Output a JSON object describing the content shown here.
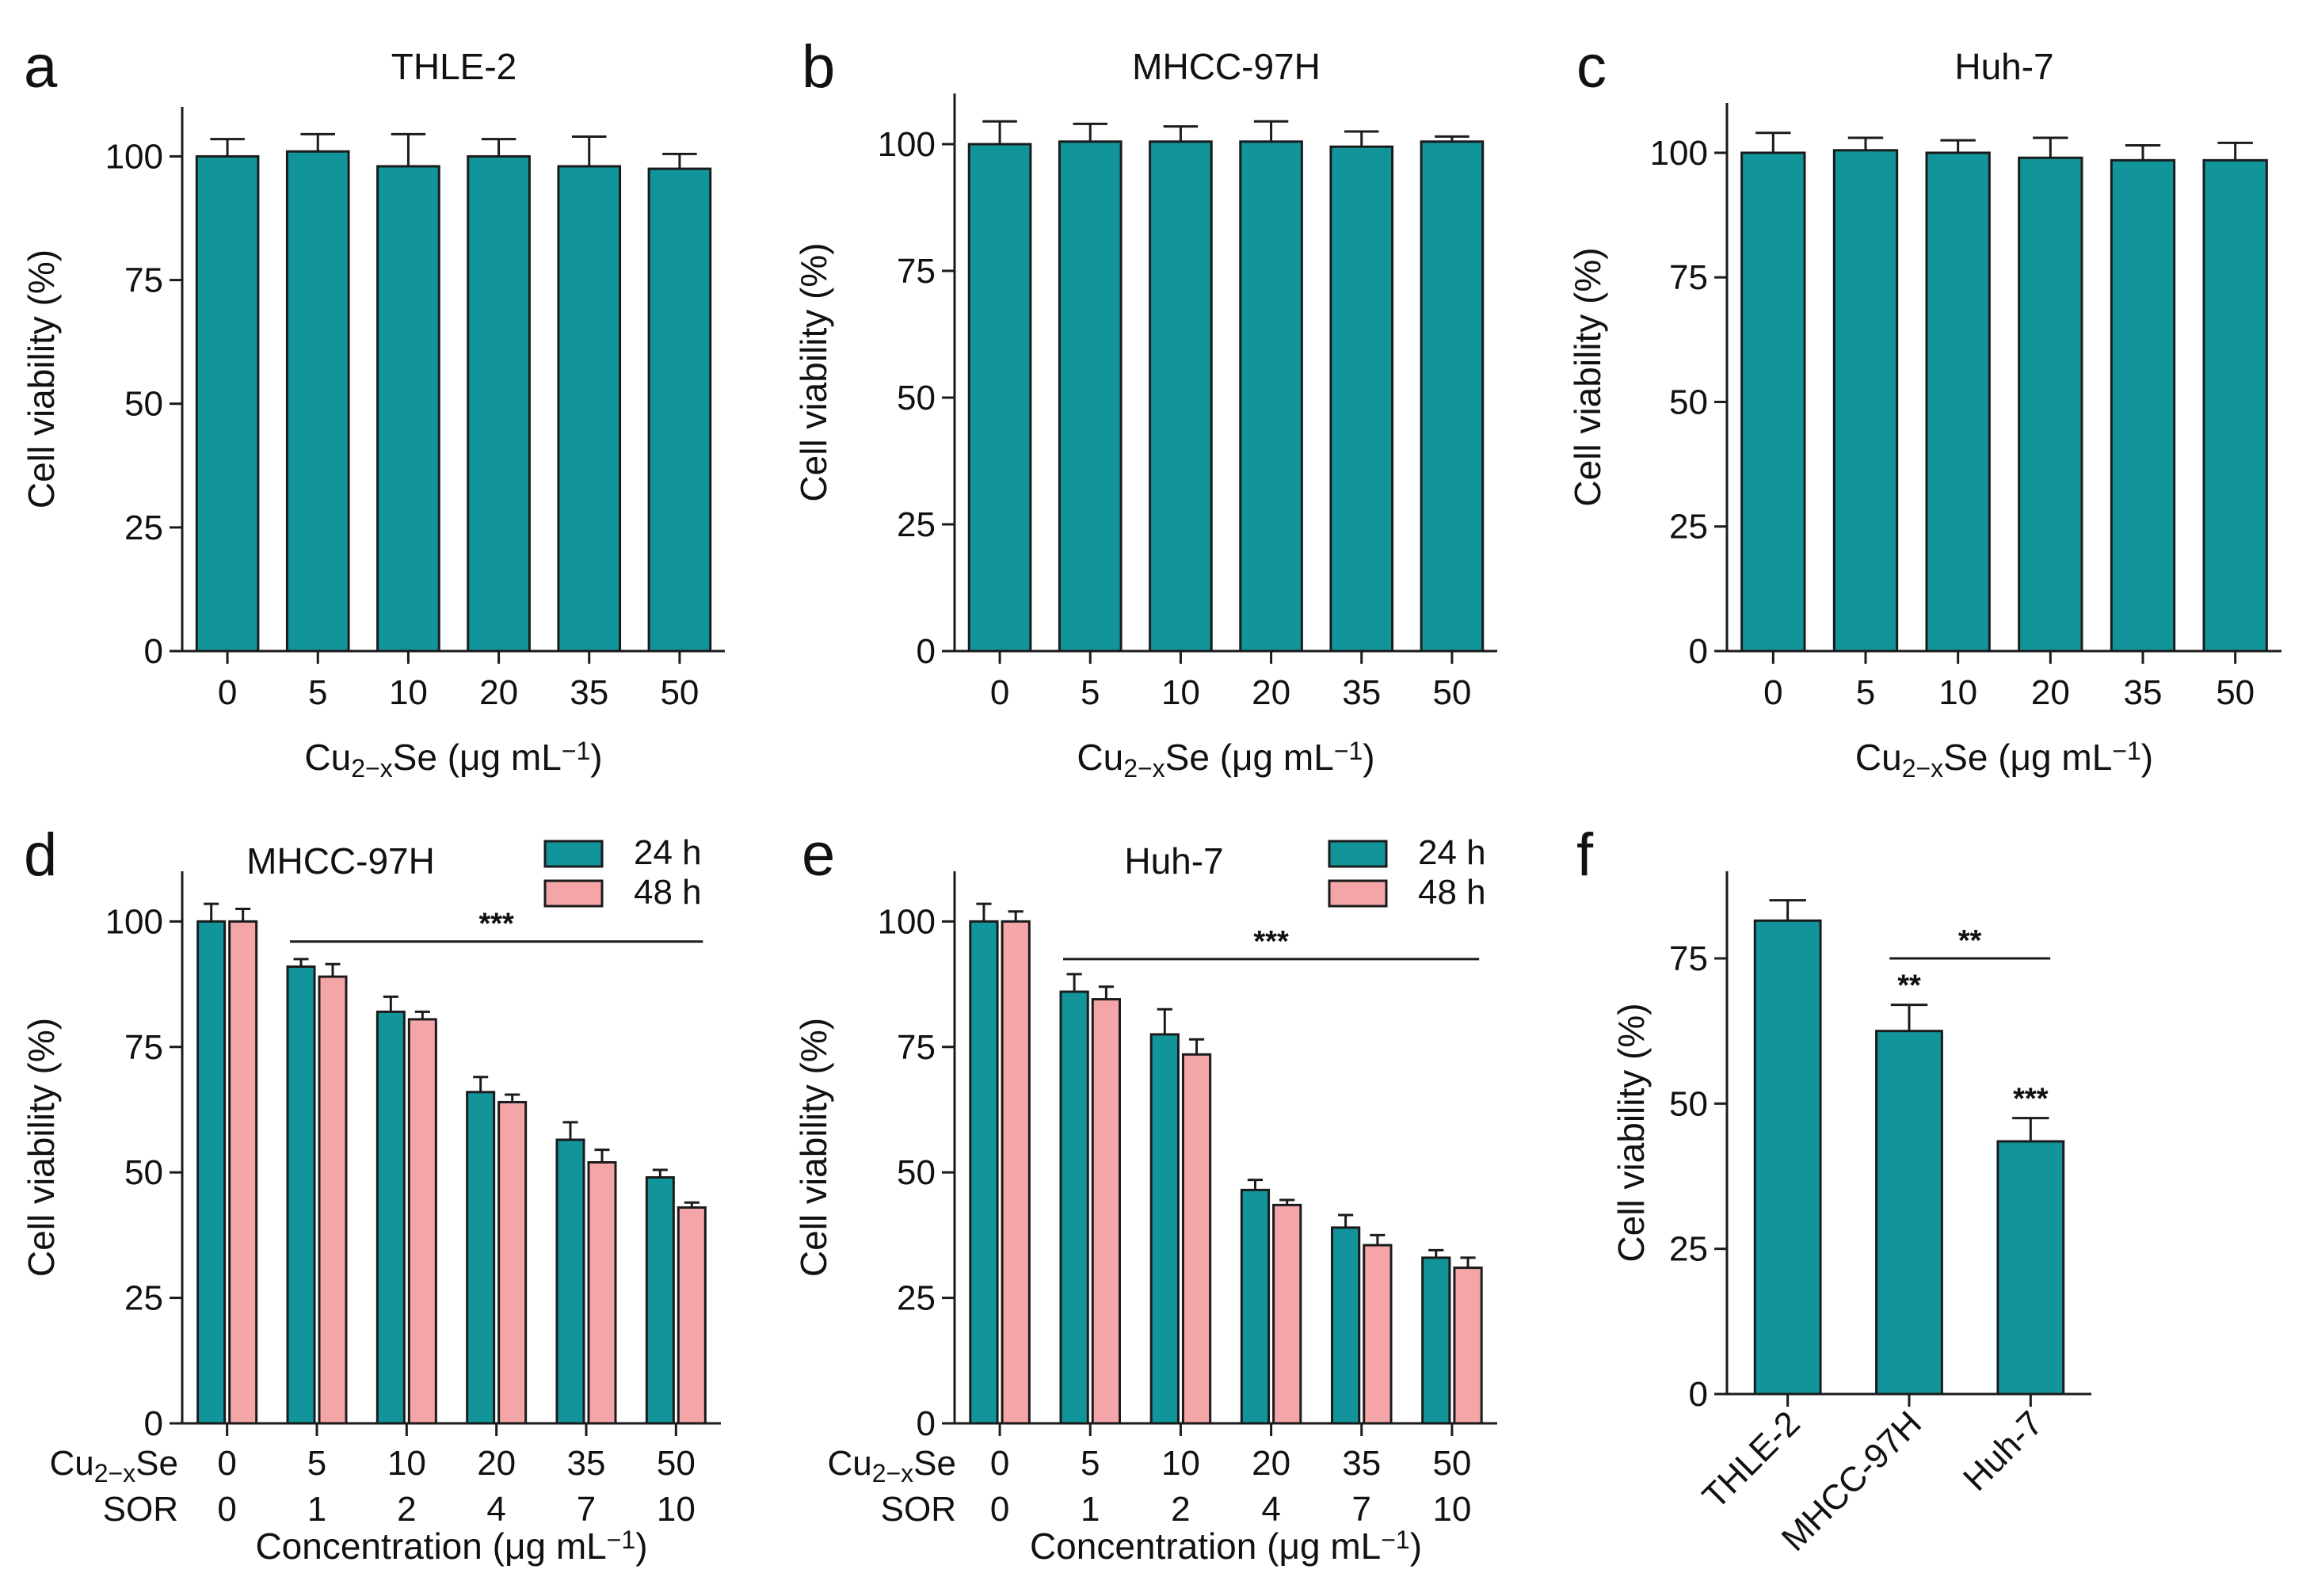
{
  "figure": {
    "colors": {
      "series_24h": "#11959b",
      "series_48h": "#f4a5a8",
      "bar_outline": "#1b1b1b",
      "axis": "#1b1b1b"
    },
    "panels": [
      {
        "letter": "a",
        "chart_data": {
          "type": "bar",
          "title": "THLE-2",
          "categories": [
            "0",
            "5",
            "10",
            "20",
            "35",
            "50"
          ],
          "series": [
            {
              "name": "viability",
              "values": [
                100,
                101,
                98,
                100,
                98,
                97.5
              ],
              "errors": [
                3.5,
                3.5,
                6.5,
                3.5,
                6,
                3
              ]
            }
          ],
          "xlabel_parts": [
            "Cu",
            "2−x",
            "Se (μg mL",
            "−1",
            ")"
          ],
          "ylabel": "Cell viability (%)",
          "yticks": [
            0,
            25,
            50,
            75,
            100
          ],
          "ylim": [
            0,
            110
          ]
        }
      },
      {
        "letter": "b",
        "chart_data": {
          "type": "bar",
          "title": "MHCC-97H",
          "categories": [
            "0",
            "5",
            "10",
            "20",
            "35",
            "50"
          ],
          "series": [
            {
              "name": "viability",
              "values": [
                100,
                100.5,
                100.5,
                100.5,
                99.5,
                100.5
              ],
              "errors": [
                4.5,
                3.5,
                3,
                4,
                3,
                1
              ]
            }
          ],
          "xlabel_parts": [
            "Cu",
            "2−x",
            "Se (μg mL",
            "−1",
            ")"
          ],
          "ylabel": "Cell viability (%)",
          "yticks": [
            0,
            25,
            50,
            75,
            100
          ],
          "ylim": [
            0,
            110
          ]
        }
      },
      {
        "letter": "c",
        "chart_data": {
          "type": "bar",
          "title": "Huh-7",
          "categories": [
            "0",
            "5",
            "10",
            "20",
            "35",
            "50"
          ],
          "series": [
            {
              "name": "viability",
              "values": [
                100,
                100.5,
                100,
                99,
                98.5,
                98.5
              ],
              "errors": [
                4,
                2.5,
                2.5,
                4,
                3,
                3.5
              ]
            }
          ],
          "xlabel_parts": [
            "Cu",
            "2−x",
            "Se (μg mL",
            "−1",
            ")"
          ],
          "ylabel": "Cell viability (%)",
          "yticks": [
            0,
            25,
            50,
            75,
            100
          ],
          "ylim": [
            0,
            110
          ]
        }
      },
      {
        "letter": "d",
        "chart_data": {
          "type": "bar",
          "title": "MHCC-97H",
          "categories": [
            "0",
            "5",
            "10",
            "20",
            "35",
            "50"
          ],
          "row_labels": [
            {
              "label_parts": [
                "Cu",
                "2−x",
                "Se"
              ],
              "values": [
                "0",
                "5",
                "10",
                "20",
                "35",
                "50"
              ]
            },
            {
              "label_parts": [
                "SOR"
              ],
              "values": [
                "0",
                "1",
                "2",
                "4",
                "7",
                "10"
              ]
            }
          ],
          "series": [
            {
              "name": "24 h",
              "values": [
                100,
                91,
                82,
                66,
                56.5,
                49
              ],
              "errors": [
                3.5,
                1.5,
                3,
                3,
                3.5,
                1.5
              ]
            },
            {
              "name": "48 h",
              "values": [
                100,
                89,
                80.5,
                64,
                52,
                43
              ],
              "errors": [
                2.5,
                2.5,
                1.5,
                1.5,
                2.5,
                1
              ]
            }
          ],
          "legend": [
            "24 h",
            "48 h"
          ],
          "significance": [
            {
              "label": "***",
              "from": 1,
              "to": 5,
              "y": 96
            }
          ],
          "xlabel_parts": [
            "Concentration (μg mL",
            "−1",
            ")"
          ],
          "ylabel": "Cell viability (%)",
          "yticks": [
            0,
            25,
            50,
            75,
            100
          ],
          "ylim": [
            0,
            110
          ]
        }
      },
      {
        "letter": "e",
        "chart_data": {
          "type": "bar",
          "title": "Huh-7",
          "categories": [
            "0",
            "5",
            "10",
            "20",
            "35",
            "50"
          ],
          "row_labels": [
            {
              "label_parts": [
                "Cu",
                "2−x",
                "Se"
              ],
              "values": [
                "0",
                "5",
                "10",
                "20",
                "35",
                "50"
              ]
            },
            {
              "label_parts": [
                "SOR"
              ],
              "values": [
                "0",
                "1",
                "2",
                "4",
                "7",
                "10"
              ]
            }
          ],
          "series": [
            {
              "name": "24 h",
              "values": [
                100,
                86,
                77.5,
                46.5,
                39,
                33
              ],
              "errors": [
                3.5,
                3.5,
                5,
                2,
                2.5,
                1.5
              ]
            },
            {
              "name": "48 h",
              "values": [
                100,
                84.5,
                73.5,
                43.5,
                35.5,
                31
              ],
              "errors": [
                2,
                2.5,
                3,
                1,
                2,
                2
              ]
            }
          ],
          "legend": [
            "24 h",
            "48 h"
          ],
          "significance": [
            {
              "label": "***",
              "from": 1,
              "to": 5,
              "y": 92.5
            }
          ],
          "xlabel_parts": [
            "Concentration (μg mL",
            "−1",
            ")"
          ],
          "ylabel": "Cell viability (%)",
          "yticks": [
            0,
            25,
            50,
            75,
            100
          ],
          "ylim": [
            0,
            110
          ]
        }
      },
      {
        "letter": "f",
        "chart_data": {
          "type": "bar",
          "title": "",
          "categories": [
            "THLE-2",
            "MHCC-97H",
            "Huh-7"
          ],
          "series": [
            {
              "name": "viability",
              "values": [
                81.5,
                62.5,
                43.5
              ],
              "errors": [
                3.5,
                4.5,
                4
              ]
            }
          ],
          "bar_marks": [
            "",
            "**",
            "***"
          ],
          "significance": [
            {
              "label": "**",
              "from": 1,
              "to": 2,
              "y": 75
            }
          ],
          "xlabel_parts": [],
          "ylabel": "Cell viability (%)",
          "yticks": [
            0,
            25,
            50,
            75
          ],
          "ylim": [
            0,
            90
          ]
        }
      }
    ]
  }
}
